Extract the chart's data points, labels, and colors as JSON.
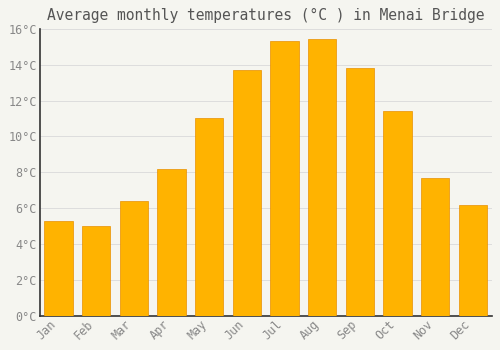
{
  "title": "Average monthly temperatures (°C ) in Menai Bridge",
  "months": [
    "Jan",
    "Feb",
    "Mar",
    "Apr",
    "May",
    "Jun",
    "Jul",
    "Aug",
    "Sep",
    "Oct",
    "Nov",
    "Dec"
  ],
  "temperatures": [
    5.3,
    5.0,
    6.4,
    8.2,
    11.0,
    13.7,
    15.3,
    15.4,
    13.8,
    11.4,
    7.7,
    6.2
  ],
  "bar_color_top": "#FFB300",
  "bar_color_bottom": "#FFA000",
  "background_color": "#F5F5F0",
  "plot_bg_color": "#F5F5F0",
  "grid_color": "#DDDDDD",
  "text_color": "#888888",
  "title_color": "#555555",
  "spine_color": "#333333",
  "ylim": [
    0,
    16
  ],
  "yticks": [
    0,
    2,
    4,
    6,
    8,
    10,
    12,
    14,
    16
  ],
  "title_fontsize": 10.5,
  "tick_fontsize": 8.5,
  "font_family": "monospace",
  "bar_width": 0.75
}
